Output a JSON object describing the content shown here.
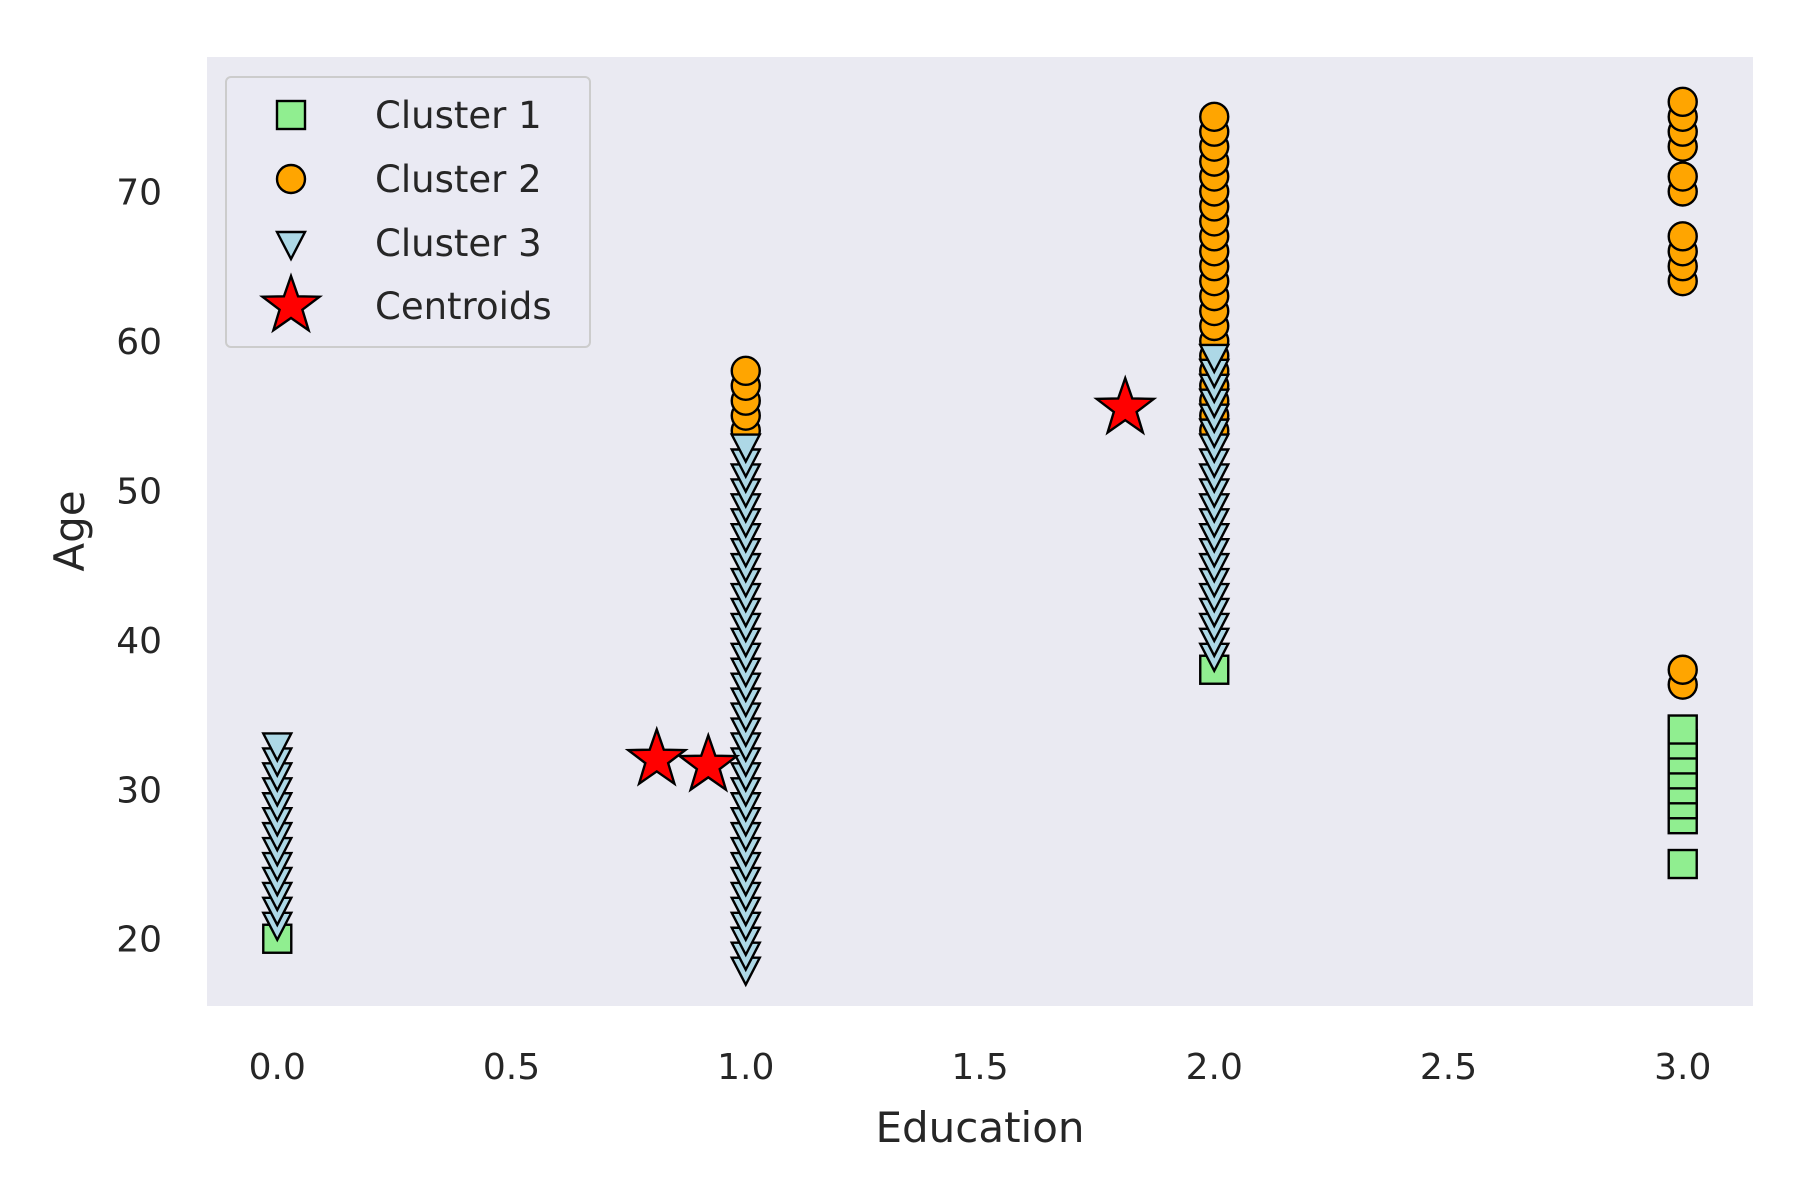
{
  "chart_data": {
    "type": "scatter",
    "title": "",
    "xlabel": "Education",
    "ylabel": "Age",
    "xlim": [
      -0.15,
      3.15
    ],
    "ylim": [
      15.5,
      79
    ],
    "xticks": [
      0.0,
      0.5,
      1.0,
      1.5,
      2.0,
      2.5,
      3.0
    ],
    "xtick_labels": [
      "0.0",
      "0.5",
      "1.0",
      "1.5",
      "2.0",
      "2.5",
      "3.0"
    ],
    "yticks": [
      20,
      30,
      40,
      50,
      60,
      70
    ],
    "ytick_labels": [
      "20",
      "30",
      "40",
      "50",
      "60",
      "70"
    ],
    "grid": false,
    "background_color": "#eaeaf2",
    "legend": {
      "placement": "top-left"
    },
    "series": [
      {
        "name": "Cluster 1",
        "marker": "square",
        "color": "#90ee90",
        "points": [
          [
            0,
            20
          ],
          [
            2,
            38
          ],
          [
            3,
            25
          ],
          [
            3,
            28
          ],
          [
            3,
            29
          ],
          [
            3,
            30
          ],
          [
            3,
            31
          ],
          [
            3,
            32
          ],
          [
            3,
            33
          ],
          [
            3,
            34
          ]
        ]
      },
      {
        "name": "Cluster 2",
        "marker": "circle",
        "color": "#ffa500",
        "points": [
          [
            1,
            54
          ],
          [
            1,
            55
          ],
          [
            1,
            56
          ],
          [
            1,
            57
          ],
          [
            1,
            58
          ],
          [
            2,
            54
          ],
          [
            2,
            55
          ],
          [
            2,
            56
          ],
          [
            2,
            57
          ],
          [
            2,
            58
          ],
          [
            2,
            59
          ],
          [
            2,
            60
          ],
          [
            2,
            61
          ],
          [
            2,
            62
          ],
          [
            2,
            63
          ],
          [
            2,
            64
          ],
          [
            2,
            65
          ],
          [
            2,
            66
          ],
          [
            2,
            67
          ],
          [
            2,
            68
          ],
          [
            2,
            69
          ],
          [
            2,
            70
          ],
          [
            2,
            71
          ],
          [
            2,
            72
          ],
          [
            2,
            73
          ],
          [
            2,
            74
          ],
          [
            2,
            75
          ],
          [
            3,
            37
          ],
          [
            3,
            38
          ],
          [
            3,
            64
          ],
          [
            3,
            65
          ],
          [
            3,
            66
          ],
          [
            3,
            67
          ],
          [
            3,
            70
          ],
          [
            3,
            71
          ],
          [
            3,
            73
          ],
          [
            3,
            74
          ],
          [
            3,
            75
          ],
          [
            3,
            76
          ]
        ]
      },
      {
        "name": "Cluster 3",
        "marker": "triangle-down",
        "color": "#add8e6",
        "points": [
          [
            0,
            21
          ],
          [
            0,
            22
          ],
          [
            0,
            23
          ],
          [
            0,
            24
          ],
          [
            0,
            25
          ],
          [
            0,
            26
          ],
          [
            0,
            27
          ],
          [
            0,
            28
          ],
          [
            0,
            29
          ],
          [
            0,
            30
          ],
          [
            0,
            31
          ],
          [
            0,
            32
          ],
          [
            0,
            33
          ],
          [
            1,
            18
          ],
          [
            1,
            19
          ],
          [
            1,
            20
          ],
          [
            1,
            21
          ],
          [
            1,
            22
          ],
          [
            1,
            23
          ],
          [
            1,
            24
          ],
          [
            1,
            25
          ],
          [
            1,
            26
          ],
          [
            1,
            27
          ],
          [
            1,
            28
          ],
          [
            1,
            29
          ],
          [
            1,
            30
          ],
          [
            1,
            31
          ],
          [
            1,
            32
          ],
          [
            1,
            33
          ],
          [
            1,
            34
          ],
          [
            1,
            35
          ],
          [
            1,
            36
          ],
          [
            1,
            37
          ],
          [
            1,
            38
          ],
          [
            1,
            39
          ],
          [
            1,
            40
          ],
          [
            1,
            41
          ],
          [
            1,
            42
          ],
          [
            1,
            43
          ],
          [
            1,
            44
          ],
          [
            1,
            45
          ],
          [
            1,
            46
          ],
          [
            1,
            47
          ],
          [
            1,
            48
          ],
          [
            1,
            49
          ],
          [
            1,
            50
          ],
          [
            1,
            51
          ],
          [
            1,
            52
          ],
          [
            1,
            53
          ],
          [
            2,
            39
          ],
          [
            2,
            40
          ],
          [
            2,
            41
          ],
          [
            2,
            42
          ],
          [
            2,
            43
          ],
          [
            2,
            44
          ],
          [
            2,
            45
          ],
          [
            2,
            46
          ],
          [
            2,
            47
          ],
          [
            2,
            48
          ],
          [
            2,
            49
          ],
          [
            2,
            50
          ],
          [
            2,
            51
          ],
          [
            2,
            52
          ],
          [
            2,
            53
          ],
          [
            2,
            54
          ],
          [
            2,
            55
          ],
          [
            2,
            56
          ],
          [
            2,
            57
          ],
          [
            2,
            58
          ],
          [
            2,
            59
          ]
        ]
      },
      {
        "name": "Centroids",
        "marker": "star",
        "color": "#ff0000",
        "points": [
          [
            0.81,
            32
          ],
          [
            0.92,
            31.6
          ],
          [
            1.81,
            55.5
          ]
        ]
      }
    ]
  }
}
